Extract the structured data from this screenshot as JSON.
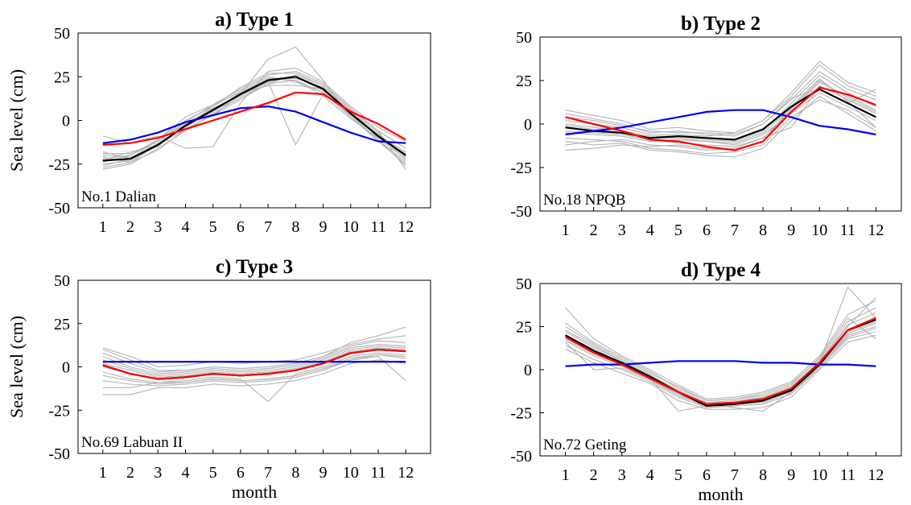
{
  "chart_data": [
    {
      "type": "line",
      "title": "a)  Type 1",
      "ylabel": "Sea level (cm)",
      "xlabel": "",
      "station": "No.1 Dalian",
      "x": [
        1,
        2,
        3,
        4,
        5,
        6,
        7,
        8,
        9,
        10,
        11,
        12
      ],
      "xticks": [
        "1",
        "2",
        "3",
        "4",
        "5",
        "6",
        "7",
        "8",
        "9",
        "10",
        "11",
        "12"
      ],
      "ylim": [
        -50,
        50
      ],
      "yticks": [
        "-50",
        "-25",
        "0",
        "25",
        "50"
      ],
      "series": [
        {
          "color": "#000000",
          "values": [
            -23,
            -22,
            -14,
            -3,
            6,
            15,
            23,
            25,
            18,
            4,
            -9,
            -20
          ]
        },
        {
          "color": "#ff0000",
          "values": [
            -14,
            -13,
            -10,
            -5,
            0,
            5,
            10,
            16,
            15,
            5,
            -2,
            -11
          ]
        },
        {
          "color": "#0000ee",
          "values": [
            -13,
            -11,
            -7,
            -1,
            3,
            7,
            8,
            5,
            -1,
            -7,
            -12,
            -13
          ]
        }
      ],
      "spread": {
        "color": "#b4b4b4",
        "lines": [
          [
            -28,
            -25,
            -16,
            -6,
            4,
            13,
            21,
            23,
            16,
            2,
            -11,
            -24
          ],
          [
            -19,
            -19,
            -12,
            -1,
            9,
            18,
            26,
            28,
            21,
            7,
            -6,
            -16
          ],
          [
            -24,
            -20,
            -11,
            0,
            8,
            17,
            25,
            22,
            16,
            3,
            -8,
            -21
          ],
          [
            -21,
            -24,
            -17,
            -5,
            3,
            12,
            21,
            26,
            20,
            6,
            -10,
            -19
          ],
          [
            -26,
            -22,
            -13,
            -4,
            5,
            16,
            24,
            24,
            19,
            5,
            -7,
            -23
          ],
          [
            -20,
            -21,
            -15,
            -2,
            7,
            14,
            22,
            25,
            17,
            3,
            -9,
            -18
          ],
          [
            -25,
            -23,
            -14,
            -3,
            6,
            15,
            35,
            42,
            23,
            2,
            -12,
            -25
          ],
          [
            -22,
            -20,
            -12,
            -2,
            5,
            14,
            22,
            -14,
            15,
            4,
            -8,
            -20
          ],
          [
            -9,
            -13,
            -9,
            -16,
            -15,
            10,
            28,
            30,
            22,
            8,
            -4,
            -12
          ],
          [
            -27,
            -24,
            -14,
            -5,
            3,
            15,
            20,
            20,
            18,
            3,
            -11,
            -26
          ],
          [
            -23,
            -18,
            -14,
            -3,
            8,
            19,
            27,
            27,
            20,
            6,
            -6,
            -28
          ],
          [
            -18,
            -22,
            -11,
            2,
            9,
            16,
            24,
            23,
            14,
            1,
            -10,
            -22
          ]
        ]
      }
    },
    {
      "type": "line",
      "title": "b)  Type 2",
      "ylabel": "",
      "xlabel": "",
      "station": "No.18 NPQB",
      "x": [
        1,
        2,
        3,
        4,
        5,
        6,
        7,
        8,
        9,
        10,
        11,
        12
      ],
      "xticks": [
        "1",
        "2",
        "3",
        "4",
        "5",
        "6",
        "7",
        "8",
        "9",
        "10",
        "11",
        "12"
      ],
      "ylim": [
        -50,
        50
      ],
      "yticks": [
        "-50",
        "-25",
        "0",
        "25",
        "50"
      ],
      "series": [
        {
          "color": "#000000",
          "values": [
            -2,
            -4,
            -5,
            -8,
            -7,
            -8,
            -9,
            -3,
            10,
            20,
            12,
            4
          ]
        },
        {
          "color": "#ff0000",
          "values": [
            4,
            0,
            -4,
            -9,
            -10,
            -13,
            -15,
            -10,
            7,
            21,
            17,
            11
          ]
        },
        {
          "color": "#0000ee",
          "values": [
            -6,
            -4,
            -2,
            1,
            4,
            7,
            8,
            8,
            4,
            -1,
            -3,
            -6
          ]
        }
      ],
      "spread": {
        "color": "#b4b4b4",
        "lines": [
          [
            -12,
            -10,
            -9,
            -12,
            -13,
            -15,
            -14,
            -8,
            8,
            24,
            16,
            8
          ],
          [
            6,
            3,
            0,
            -5,
            -4,
            -6,
            -7,
            0,
            14,
            30,
            20,
            14
          ],
          [
            -5,
            -6,
            -7,
            -10,
            -9,
            -10,
            -12,
            -6,
            6,
            18,
            10,
            2
          ],
          [
            2,
            0,
            -2,
            -6,
            -6,
            -7,
            -5,
            2,
            16,
            34,
            22,
            16
          ],
          [
            -8,
            -9,
            -10,
            -14,
            -15,
            -17,
            -16,
            -12,
            4,
            14,
            8,
            -2
          ],
          [
            0,
            -2,
            -4,
            -7,
            -7,
            -9,
            -10,
            -4,
            12,
            28,
            18,
            10
          ],
          [
            -4,
            -5,
            -6,
            -9,
            -11,
            -12,
            -13,
            -8,
            -2,
            22,
            14,
            6
          ],
          [
            8,
            5,
            2,
            -3,
            -2,
            -4,
            -5,
            2,
            18,
            36,
            24,
            18
          ],
          [
            -10,
            -12,
            -11,
            -15,
            -16,
            -18,
            -19,
            -14,
            2,
            16,
            6,
            -4
          ],
          [
            -1,
            -3,
            -5,
            -8,
            -8,
            -10,
            -11,
            -5,
            9,
            25,
            15,
            7
          ],
          [
            -15,
            -14,
            -12,
            -13,
            -12,
            -14,
            -15,
            -10,
            10,
            26,
            13,
            -2
          ],
          [
            4,
            2,
            -1,
            -4,
            -5,
            -5,
            -6,
            0,
            15,
            20,
            12,
            20
          ]
        ]
      }
    },
    {
      "type": "line",
      "title": "c)  Type 3",
      "ylabel": "Sea level (cm)",
      "xlabel": "month",
      "station": "No.69 Labuan II",
      "x": [
        1,
        2,
        3,
        4,
        5,
        6,
        7,
        8,
        9,
        10,
        11,
        12
      ],
      "xticks": [
        "1",
        "2",
        "3",
        "4",
        "5",
        "6",
        "7",
        "8",
        "9",
        "10",
        "11",
        "12"
      ],
      "ylim": [
        -50,
        50
      ],
      "yticks": [
        "-50",
        "-25",
        "0",
        "25",
        "50"
      ],
      "series": [
        {
          "color": "#000000",
          "values": [
            1,
            -4,
            -7,
            -6,
            -4,
            -5,
            -4,
            -2,
            2,
            8,
            10,
            9
          ]
        },
        {
          "color": "#ff0000",
          "values": [
            1,
            -4,
            -7,
            -6,
            -4,
            -5,
            -4,
            -2,
            2,
            8,
            10,
            9
          ]
        },
        {
          "color": "#0000ee",
          "values": [
            3,
            3,
            3,
            3,
            3,
            3,
            3,
            3,
            3,
            3,
            3,
            3
          ]
        }
      ],
      "spread": {
        "color": "#b4b4b4",
        "lines": [
          [
            10,
            4,
            -2,
            -2,
            0,
            -1,
            0,
            2,
            6,
            12,
            15,
            14
          ],
          [
            -16,
            -16,
            -12,
            -12,
            -10,
            -11,
            -10,
            -8,
            -4,
            2,
            4,
            2
          ],
          [
            6,
            0,
            -4,
            -3,
            -1,
            -2,
            -1,
            1,
            5,
            11,
            13,
            12
          ],
          [
            -8,
            -10,
            -11,
            -10,
            -8,
            -9,
            -8,
            -6,
            -2,
            4,
            7,
            6
          ],
          [
            4,
            -1,
            -5,
            -4,
            -2,
            -3,
            -2,
            0,
            4,
            10,
            12,
            11
          ],
          [
            -3,
            -7,
            -9,
            -8,
            -6,
            -7,
            -20,
            -4,
            0,
            6,
            8,
            7
          ],
          [
            2,
            -2,
            -6,
            -5,
            -3,
            -4,
            -3,
            -1,
            3,
            9,
            11,
            10
          ],
          [
            -5,
            -8,
            -10,
            -9,
            -7,
            -8,
            -7,
            -5,
            -1,
            5,
            7,
            5
          ],
          [
            8,
            2,
            -3,
            -2,
            0,
            -1,
            0,
            2,
            6,
            14,
            18,
            23
          ],
          [
            -12,
            -12,
            -9,
            -9,
            -7,
            -8,
            -7,
            -5,
            -1,
            4,
            6,
            -8
          ],
          [
            0,
            -4,
            -7,
            -6,
            -4,
            -5,
            -4,
            -2,
            2,
            8,
            10,
            9
          ],
          [
            11,
            6,
            0,
            1,
            3,
            2,
            3,
            4,
            8,
            13,
            16,
            18
          ]
        ]
      }
    },
    {
      "type": "line",
      "title": "d)  Type 4",
      "ylabel": "",
      "xlabel": "month",
      "station": "No.72 Geting",
      "x": [
        1,
        2,
        3,
        4,
        5,
        6,
        7,
        8,
        9,
        10,
        11,
        12
      ],
      "xticks": [
        "1",
        "2",
        "3",
        "4",
        "5",
        "6",
        "7",
        "8",
        "9",
        "10",
        "11",
        "12"
      ],
      "ylim": [
        -50,
        50
      ],
      "yticks": [
        "-50",
        "-25",
        "0",
        "25",
        "50"
      ],
      "series": [
        {
          "color": "#000000",
          "values": [
            20,
            11,
            4,
            -4,
            -13,
            -21,
            -20,
            -18,
            -12,
            3,
            23,
            29
          ]
        },
        {
          "color": "#ff0000",
          "values": [
            19,
            10,
            3,
            -5,
            -13,
            -20,
            -19,
            -17,
            -11,
            4,
            23,
            30
          ]
        },
        {
          "color": "#0000ee",
          "values": [
            2,
            3,
            3,
            4,
            5,
            5,
            5,
            4,
            4,
            3,
            3,
            2
          ]
        }
      ],
      "spread": {
        "color": "#b4b4b4",
        "lines": [
          [
            25,
            15,
            6,
            -2,
            -10,
            -18,
            -17,
            -14,
            -8,
            6,
            28,
            36
          ],
          [
            14,
            6,
            0,
            -7,
            -16,
            -22,
            -21,
            -20,
            -14,
            1,
            18,
            22
          ],
          [
            22,
            13,
            5,
            -3,
            -12,
            -19,
            -19,
            -16,
            -10,
            5,
            26,
            33
          ],
          [
            17,
            8,
            2,
            -6,
            -15,
            -21,
            -20,
            -19,
            -13,
            2,
            20,
            25
          ],
          [
            36,
            18,
            8,
            0,
            -9,
            -17,
            -16,
            -13,
            -7,
            8,
            32,
            40
          ],
          [
            12,
            4,
            -2,
            -8,
            -18,
            -23,
            -23,
            -22,
            -16,
            0,
            16,
            20
          ],
          [
            20,
            12,
            4,
            -4,
            -13,
            -20,
            -20,
            -17,
            -11,
            4,
            48,
            30
          ],
          [
            19,
            10,
            3,
            -5,
            -24,
            -21,
            -20,
            -18,
            -12,
            3,
            22,
            28
          ],
          [
            27,
            16,
            7,
            -1,
            -11,
            -18,
            -17,
            -15,
            -9,
            7,
            30,
            18
          ],
          [
            16,
            0,
            1,
            -6,
            -14,
            -22,
            -21,
            -20,
            -14,
            2,
            19,
            24
          ],
          [
            23,
            14,
            5,
            -3,
            -12,
            -19,
            -18,
            -16,
            -10,
            5,
            25,
            42
          ],
          [
            18,
            9,
            3,
            -5,
            -14,
            -20,
            -22,
            -24,
            -13,
            3,
            21,
            27
          ]
        ]
      }
    }
  ]
}
